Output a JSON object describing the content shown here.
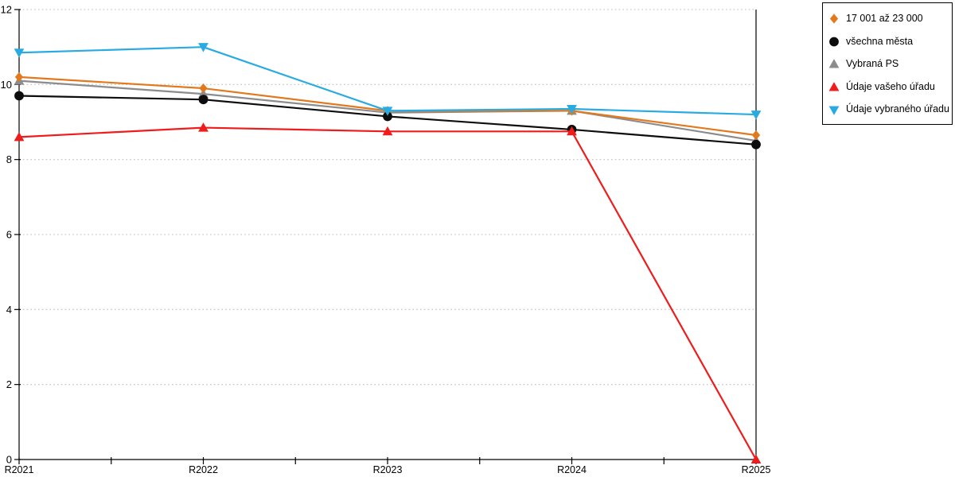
{
  "chart_data": {
    "type": "line",
    "title": "",
    "xlabel": "",
    "ylabel": "",
    "categories": [
      "R2021",
      "R2022",
      "R2023",
      "R2024",
      "R2025"
    ],
    "series": [
      {
        "name": "17 001 až 23 000",
        "marker": "diamond",
        "color": "#E2791C",
        "values": [
          10.2,
          9.9,
          9.3,
          9.3,
          8.65
        ]
      },
      {
        "name": "všechna města",
        "marker": "circle",
        "color": "#0D0D0D",
        "values": [
          9.7,
          9.6,
          9.15,
          8.8,
          8.4
        ]
      },
      {
        "name": "Vybraná PS",
        "marker": "triangle-up",
        "color": "#8C8C8C",
        "values": [
          10.1,
          9.75,
          9.25,
          9.3,
          8.5
        ]
      },
      {
        "name": "Údaje vašeho úřadu",
        "marker": "triangle-up",
        "color": "#EE1C1C",
        "values": [
          8.6,
          8.85,
          8.75,
          8.75,
          0
        ]
      },
      {
        "name": "Údaje vybraného úřadu",
        "marker": "triangle-down",
        "color": "#29ABE2",
        "values": [
          10.85,
          11.0,
          9.3,
          9.35,
          9.2
        ]
      }
    ],
    "ylim": [
      0,
      12
    ],
    "yticks": [
      0,
      2,
      4,
      6,
      8,
      10,
      12
    ],
    "x_minor_ticks_between_categories": true,
    "grid": "horizontal-dotted",
    "legend_position": "outside-top-right",
    "draw_order": [
      2,
      0,
      1,
      3,
      4
    ]
  },
  "colors": {
    "background": "#FFFFFF",
    "axis": "#000000",
    "grid": "#C8C8C8",
    "tick_label": "#000000",
    "legend_border": "#000000",
    "legend_background": "#FFFFFF"
  }
}
